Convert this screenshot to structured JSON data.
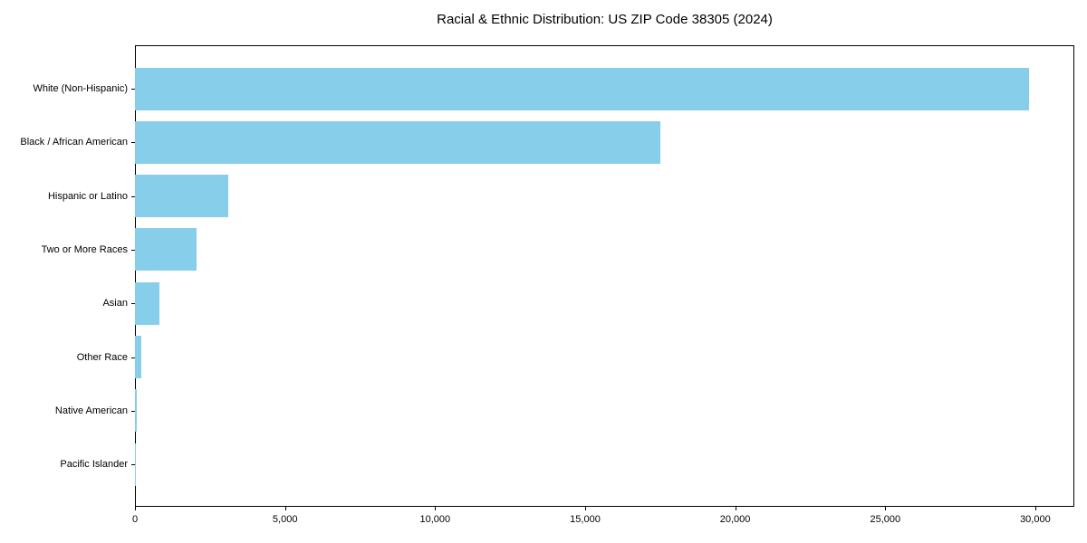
{
  "chart_data": {
    "type": "bar",
    "orientation": "horizontal",
    "title": "Racial & Ethnic Distribution: US ZIP Code 38305 (2024)",
    "categories": [
      "White (Non-Hispanic)",
      "Black / African American",
      "Hispanic or Latino",
      "Two or More Races",
      "Asian",
      "Other Race",
      "Native American",
      "Pacific Islander"
    ],
    "values": [
      29800,
      17500,
      3100,
      2050,
      800,
      200,
      50,
      15
    ],
    "xlabel": "",
    "ylabel": "",
    "xlim": [
      0,
      31300
    ],
    "x_ticks": [
      0,
      5000,
      10000,
      15000,
      20000,
      25000,
      30000
    ],
    "x_tick_labels": [
      "0",
      "5,000",
      "10,000",
      "15,000",
      "20,000",
      "25,000",
      "30,000"
    ],
    "bar_color": "#87CEEB",
    "background_color": "#FFFFFF",
    "grid": false,
    "legend": null
  }
}
